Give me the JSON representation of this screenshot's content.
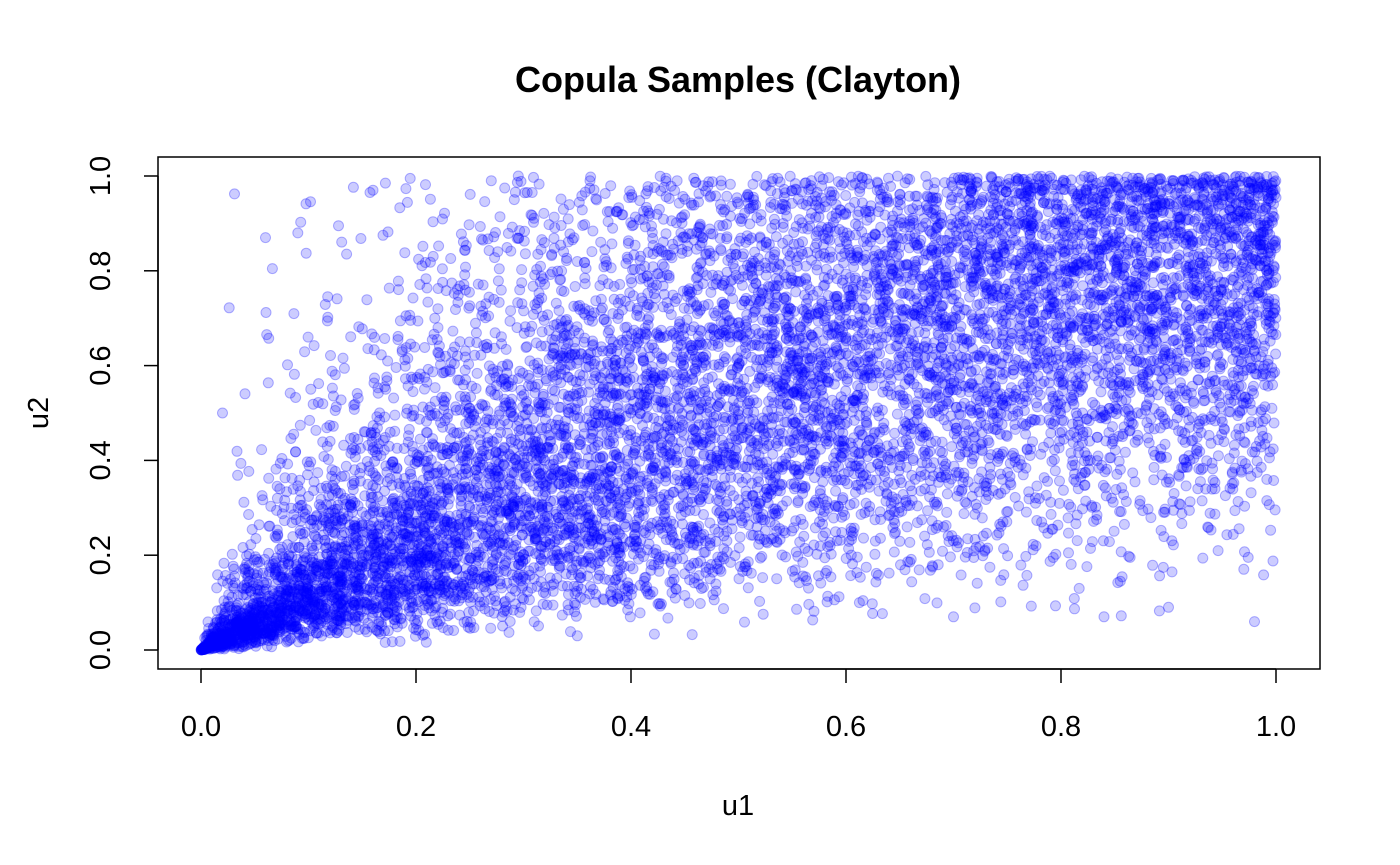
{
  "chart_data": {
    "type": "scatter",
    "title": "Copula Samples (Clayton)",
    "xlabel": "u1",
    "ylabel": "u2",
    "xlim": [
      0,
      1
    ],
    "ylim": [
      0,
      1
    ],
    "x_ticks": [
      "0.0",
      "0.2",
      "0.4",
      "0.6",
      "0.8",
      "1.0"
    ],
    "y_ticks": [
      "0.0",
      "0.2",
      "0.4",
      "0.6",
      "0.8",
      "1.0"
    ],
    "grid": false,
    "legend": "none",
    "copula_family": "Clayton",
    "approx_sample_count": 10000,
    "marker": "filled-circle",
    "point_color": "#0000FF",
    "point_alpha": 0.2,
    "series": [
      {
        "points": [
          [
            0.02,
            0.01
          ],
          [
            0.05,
            0.04
          ],
          [
            0.08,
            0.06
          ],
          [
            0.1,
            0.12
          ],
          [
            0.12,
            0.08
          ],
          [
            0.15,
            0.18
          ],
          [
            0.18,
            0.11
          ],
          [
            0.2,
            0.25
          ],
          [
            0.22,
            0.16
          ],
          [
            0.25,
            0.3
          ],
          [
            0.28,
            0.21
          ],
          [
            0.3,
            0.42
          ],
          [
            0.32,
            0.27
          ],
          [
            0.35,
            0.55
          ],
          [
            0.38,
            0.33
          ],
          [
            0.4,
            0.5
          ],
          [
            0.42,
            0.38
          ],
          [
            0.45,
            0.68
          ],
          [
            0.48,
            0.41
          ],
          [
            0.5,
            0.6
          ],
          [
            0.52,
            0.47
          ],
          [
            0.55,
            0.78
          ],
          [
            0.58,
            0.52
          ],
          [
            0.6,
            0.66
          ],
          [
            0.62,
            0.35
          ],
          [
            0.65,
            0.85
          ],
          [
            0.68,
            0.58
          ],
          [
            0.7,
            0.74
          ],
          [
            0.72,
            0.45
          ],
          [
            0.75,
            0.92
          ],
          [
            0.78,
            0.63
          ],
          [
            0.8,
            0.81
          ],
          [
            0.82,
            0.5
          ],
          [
            0.85,
            0.95
          ],
          [
            0.88,
            0.7
          ],
          [
            0.9,
            0.88
          ],
          [
            0.92,
            0.4
          ],
          [
            0.95,
            0.97
          ],
          [
            0.97,
            0.76
          ],
          [
            0.99,
            0.93
          ],
          [
            0.06,
            0.87
          ],
          [
            0.09,
            0.88
          ],
          [
            0.16,
            0.97
          ],
          [
            0.02,
            0.5
          ],
          [
            0.98,
            0.06
          ],
          [
            0.84,
            0.07
          ],
          [
            0.9,
            0.09
          ],
          [
            0.7,
            0.07
          ],
          [
            0.35,
            0.03
          ],
          [
            0.27,
            0.99
          ]
        ]
      }
    ]
  }
}
